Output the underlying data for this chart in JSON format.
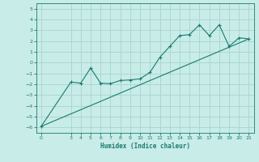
{
  "title": "",
  "xlabel": "Humidex (Indice chaleur)",
  "ylabel": "",
  "bg_color": "#c8ece8",
  "grid_color": "#aad4ce",
  "line_color": "#1a7a6e",
  "marker_color": "#1a7a6e",
  "x_data": [
    0,
    3,
    4,
    5,
    6,
    7,
    8,
    9,
    10,
    11,
    12,
    13,
    14,
    15,
    16,
    17,
    18,
    19,
    20,
    21
  ],
  "y_data": [
    -5.9,
    -1.8,
    -1.9,
    -0.5,
    -1.9,
    -1.95,
    -1.65,
    -1.6,
    -1.5,
    -0.9,
    0.5,
    1.5,
    2.5,
    2.6,
    3.5,
    2.5,
    3.5,
    1.5,
    2.3,
    2.2
  ],
  "trend_x": [
    0,
    21
  ],
  "trend_y": [
    -5.9,
    2.2
  ],
  "ylim": [
    -6.5,
    5.5
  ],
  "xlim": [
    -0.5,
    21.5
  ],
  "yticks": [
    5,
    4,
    3,
    2,
    1,
    0,
    -1,
    -2,
    -3,
    -4,
    -5,
    -6
  ],
  "xticks": [
    0,
    3,
    4,
    5,
    6,
    7,
    8,
    9,
    10,
    11,
    12,
    13,
    14,
    15,
    16,
    17,
    18,
    19,
    20,
    21
  ]
}
